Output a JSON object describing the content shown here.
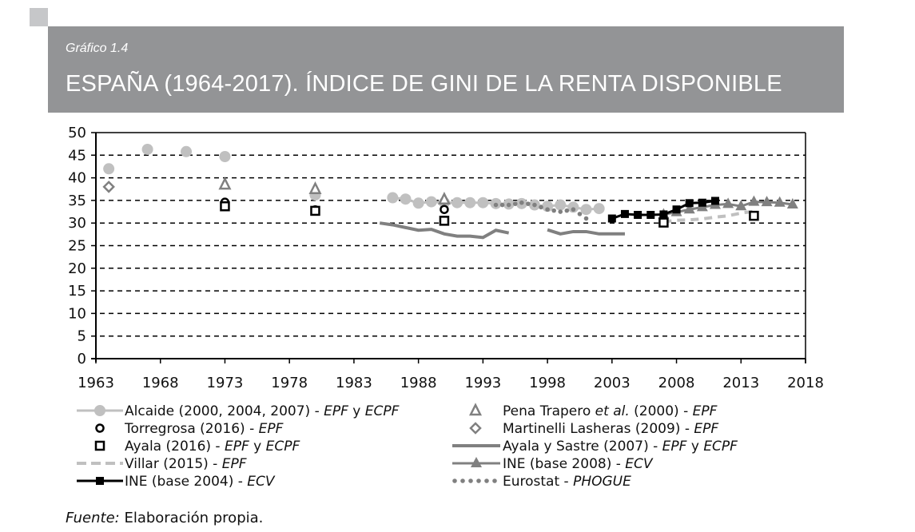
{
  "header": {
    "subtitle": "Gráfico 1.4",
    "title": "ESPAÑA (1964-2017). ÍNDICE DE GINI DE LA RENTA DISPONIBLE"
  },
  "source": {
    "label": "Fuente:",
    "text": " Elaboración propia."
  },
  "colors": {
    "header_bg": "#939496",
    "light_gray": "#c0c0c0",
    "mid_gray": "#808080",
    "black": "#000000"
  },
  "chart_data": {
    "type": "line",
    "title": "ESPAÑA (1964-2017). ÍNDICE DE GINI DE LA RENTA DISPONIBLE",
    "xlabel": "",
    "ylabel": "",
    "xlim": [
      1963,
      2018
    ],
    "ylim": [
      0,
      50
    ],
    "x_ticks": [
      1963,
      1968,
      1973,
      1978,
      1983,
      1988,
      1993,
      1998,
      2003,
      2008,
      2013,
      2018
    ],
    "y_ticks": [
      0,
      5,
      10,
      15,
      20,
      25,
      30,
      35,
      40,
      45,
      50
    ],
    "grid": "horizontal dashed",
    "legend_position": "bottom, two columns",
    "series": [
      {
        "name": "Alcaide (2000, 2004, 2007) - EPF y ECPF",
        "style": "light gray line with circle markers",
        "x": [
          1964,
          1967,
          1970,
          1973,
          1980,
          1986,
          1987,
          1988,
          1989,
          1990,
          1991,
          1992,
          1993,
          1994,
          1995,
          1996,
          1997,
          1998,
          1999,
          2000,
          2001,
          2002
        ],
        "y": [
          42,
          46.3,
          45.8,
          44.7,
          36.2,
          35.6,
          35.3,
          34.4,
          34.7,
          34.5,
          34.5,
          34.5,
          34.5,
          34.3,
          34.2,
          34.3,
          34.0,
          33.7,
          34.0,
          33.5,
          33.0,
          33.2
        ]
      },
      {
        "name": "Torregrosa (2016) - EPF",
        "style": "black open circle",
        "x": [
          1973,
          1980,
          1990
        ],
        "y": [
          34.6,
          32.9,
          33.0
        ]
      },
      {
        "name": "Ayala (2016) - EPF y ECPF",
        "style": "black open square",
        "x": [
          1973,
          1980,
          1990,
          2007,
          2014
        ],
        "y": [
          33.7,
          32.7,
          30.5,
          30.1,
          31.6
        ]
      },
      {
        "name": "Villar (2015) - EPF",
        "style": "light gray dashed line",
        "x": [
          2007,
          2008,
          2009,
          2010,
          2011,
          2012,
          2013,
          2014
        ],
        "y": [
          30.3,
          30.6,
          30.7,
          30.9,
          31.3,
          31.6,
          32.2,
          32.6
        ]
      },
      {
        "name": "INE (base 2004) - ECV",
        "style": "black line with square markers",
        "x": [
          2003,
          2004,
          2005,
          2006,
          2007,
          2008,
          2009,
          2010,
          2011
        ],
        "y": [
          31.0,
          32.0,
          31.8,
          31.8,
          31.9,
          33.0,
          34.4,
          34.5,
          34.9
        ]
      },
      {
        "name": "Pena Trapero et al. (2000) - EPF",
        "style": "gray open triangle",
        "x": [
          1973,
          1980,
          1990
        ],
        "y": [
          38.5,
          37.5,
          35.2
        ]
      },
      {
        "name": "Martinelli Lasheras (2009) - EPF",
        "style": "gray open diamond",
        "x": [
          1964
        ],
        "y": [
          38.0
        ]
      },
      {
        "name": "Ayala y Sastre (2007) - EPF y ECPF",
        "style": "gray solid line",
        "segments": [
          {
            "x": [
              1985,
              1986,
              1987,
              1988,
              1989,
              1990,
              1991,
              1992,
              1993,
              1994,
              1995
            ],
            "y": [
              30.0,
              29.6,
              29.0,
              28.4,
              28.6,
              27.6,
              27.1,
              27.1,
              26.8,
              28.4,
              27.8
            ]
          },
          {
            "x": [
              1998,
              1999,
              2000,
              2001,
              2002,
              2003,
              2004
            ],
            "y": [
              28.5,
              27.6,
              28.1,
              28.1,
              27.6,
              27.6,
              27.6
            ]
          }
        ]
      },
      {
        "name": "INE (base 2008) - ECV",
        "style": "gray line with filled triangle markers",
        "x": [
          2007,
          2008,
          2009,
          2010,
          2011,
          2012,
          2013,
          2014,
          2015,
          2016,
          2017
        ],
        "y": [
          31.9,
          32.4,
          33.0,
          33.5,
          34.0,
          34.2,
          33.7,
          34.7,
          34.6,
          34.5,
          34.1
        ]
      },
      {
        "name": "Eurostat - PHOGUE",
        "style": "gray dotted line",
        "x": [
          1994,
          1995,
          1996,
          1997,
          1998,
          1999,
          2000,
          2001
        ],
        "y": [
          34.0,
          34.0,
          34.5,
          34.0,
          33.0,
          32.5,
          33.0,
          31.0
        ]
      }
    ]
  },
  "legend": {
    "left": [
      {
        "text": "Alcaide (2000, 2004, 2007)  - ",
        "em": "EPF",
        "rest": " y ",
        "em2": "ECPF"
      },
      {
        "text": "Torregrosa (2016) - ",
        "em": "EPF",
        "rest": "",
        "em2": ""
      },
      {
        "text": "Ayala (2016) - ",
        "em": "EPF",
        "rest": " y ",
        "em2": "ECPF"
      },
      {
        "text": "Villar (2015) - ",
        "em": "EPF",
        "rest": "",
        "em2": ""
      },
      {
        "text": "INE (base 2004) - ",
        "em": "ECV",
        "rest": "",
        "em2": ""
      }
    ],
    "right": [
      {
        "text": "Pena Trapero ",
        "em": "et al.",
        "rest": "  (2000) - ",
        "em2": "EPF"
      },
      {
        "text": "Martinelli Lasheras (2009) - ",
        "em": "EPF",
        "rest": "",
        "em2": ""
      },
      {
        "text": "Ayala y Sastre (2007) - ",
        "em": "EPF",
        "rest": " y ",
        "em2": "ECPF"
      },
      {
        "text": "INE (base 2008) - ",
        "em": "ECV",
        "rest": "",
        "em2": ""
      },
      {
        "text": "Eurostat - ",
        "em": "PHOGUE",
        "rest": "",
        "em2": ""
      }
    ]
  }
}
